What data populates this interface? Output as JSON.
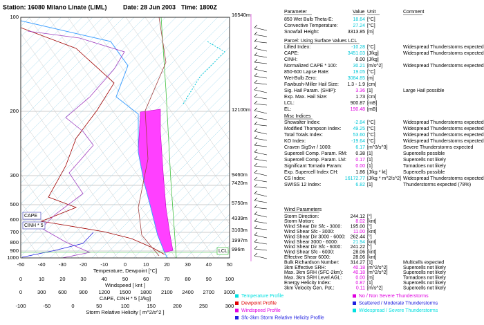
{
  "header": {
    "station": "Station: 16080 Milano Linate (LIML)",
    "date": "Date: 28 Jun 2003",
    "time": "Time: 1800Z"
  },
  "pressure_labels": [
    "100",
    "200",
    "300",
    "500",
    "600",
    "700",
    "800",
    "900",
    "1000"
  ],
  "height_labels": [
    "16540m",
    "12100m",
    "9460m",
    "7420m",
    "5750m",
    "4339m",
    "3103m",
    "1997m",
    "996m"
  ],
  "boxes": {
    "cape": "CAPE",
    "cinh": "CINH * 5",
    "lcl": "LCL"
  },
  "axes": [
    {
      "ticks": [
        "-50",
        "-40",
        "-30",
        "-20",
        "-10",
        "0",
        "10",
        "20",
        "30",
        "40",
        "50"
      ],
      "label": "Temperature, Dewpoint [°C]"
    },
    {
      "ticks": [
        "0",
        "10",
        "20",
        "30",
        "40",
        "50",
        "60",
        "70",
        "80",
        "90",
        "100"
      ],
      "label": "Windspeed [ knt ]"
    },
    {
      "ticks": [
        "0",
        "300",
        "600",
        "900",
        "1200",
        "1500",
        "1800",
        "2100",
        "2400",
        "2700",
        "3000"
      ],
      "label": "CAPE, CINH * 5 [J/kg]"
    },
    {
      "ticks": [
        "-100",
        "-50",
        "0",
        "50",
        "100",
        "150",
        "200",
        "250",
        "300"
      ],
      "label": "Storm Relative Helicity [ m^2/s^2 ]"
    }
  ],
  "table": {
    "header": [
      "Parameter",
      "Value",
      "Unit",
      "Comment"
    ],
    "sections": [
      {
        "rows": [
          {
            "label": "850 Wet Bulb Theta-E:",
            "value": "18.64",
            "unit": "[°C]",
            "color": "#00c8d8"
          },
          {
            "label": "Convective Temperature:",
            "value": "27.24",
            "unit": "[°C]",
            "color": "#00c8d8"
          },
          {
            "label": "Snowfall Height:",
            "value": "3313.85",
            "unit": "[m]"
          }
        ]
      },
      {
        "title": "Parcel: Using Surface Values LCL",
        "rows": [
          {
            "label": "Lifted Index:",
            "value": "-10.28",
            "unit": "[°C]",
            "comment": "Widespread Thunderstorms expected",
            "color": "#00c8d8"
          },
          {
            "label": "CAPE:",
            "value": "3451.03",
            "unit": "[J/kg]",
            "comment": "Widespread Thunderstorms expected",
            "color": "#00c8d8"
          },
          {
            "label": "CINH:",
            "value": "0.00",
            "unit": "[J/kg]"
          },
          {
            "label": "Normalized CAPE * 100:",
            "value": "30.21",
            "unit": "[m/s^2]",
            "comment": "Widespread Thunderstorms expected",
            "color": "#00c8d8"
          },
          {
            "label": "850-600 Lapse Rate:",
            "value": "19.05",
            "unit": "[°C]",
            "color": "#00c8d8"
          },
          {
            "label": "Wet-Bulb Zero:",
            "value": "3084.85",
            "unit": "[m]",
            "color": "#00c8d8"
          },
          {
            "label": "Fawbush-Miller Hail Size:",
            "value": "1.3 - 1.9",
            "unit": "[cm]"
          },
          {
            "label": "Sig. Hail Param. (SHIP):",
            "value": "3.36",
            "unit": "[1]",
            "comment": "Large Hail possible",
            "color": "#e000e0"
          },
          {
            "label": "Exp. Max. Hail Size:",
            "value": "1.73",
            "unit": "[cm]"
          },
          {
            "label": "LCL:",
            "value": "900.87",
            "unit": "[mB]"
          },
          {
            "label": "EL:",
            "value": "190.48",
            "unit": "[mB]",
            "color": "#e000e0"
          }
        ]
      },
      {
        "title": "Misc Indices",
        "rows": [
          {
            "label": "Showalter Index:",
            "value": "-2.84",
            "unit": "[°C]",
            "comment": "Widespread Thunderstorms expected",
            "color": "#00c8d8"
          },
          {
            "label": "Modified Thompson Index:",
            "value": "49.25",
            "unit": "[°C]",
            "comment": "Widespread Thunderstorms expected",
            "color": "#00c8d8"
          },
          {
            "label": "Total Totals Index:",
            "value": "53.60",
            "unit": "[°C]",
            "comment": "Widespread Thunderstorms expected",
            "color": "#00c8d8"
          },
          {
            "label": "KO Index:",
            "value": "-19.64",
            "unit": "[°C]",
            "comment": "Widespread Thunderstorms expected",
            "color": "#00c8d8"
          },
          {
            "label": "Craven SigSvr / 1000:",
            "value": "6.17",
            "unit": "[m^3/s^3]",
            "comment": "Severe Thunderstorms expected",
            "color": "#00c8d8"
          },
          {
            "label": "Supercell Comp. Param. RM:",
            "value": "0.38",
            "unit": "[1]",
            "comment": "Supercells possible"
          },
          {
            "label": "Supercell Comp. Param. LM:",
            "value": "0.17",
            "unit": "[1]",
            "comment": "Supercells not likely",
            "color": "#e000e0"
          },
          {
            "label": "Significant Tornado Param:",
            "value": "0.00",
            "unit": "[1]",
            "comment": "Tornadoes not likely",
            "color": "#e000e0"
          },
          {
            "label": "Exp. Supercell Index CH:",
            "value": "1.86",
            "unit": "[J/kg * kt]",
            "comment": "Supercells possible"
          },
          {
            "label": "CS Index:",
            "value": "16172.77",
            "unit": "[J/kg * m^2/s^2]",
            "comment": "Widespread Thunderstorms expected",
            "color": "#00c8d8"
          },
          {
            "label": "SWISS 12 Index:",
            "value": "6.82",
            "unit": "[1]",
            "comment": "Thunderstorms expected (78%)",
            "color": "#00c8d8"
          }
        ]
      },
      {
        "title": "Wind Parameters",
        "rows": [
          {
            "label": "Storm Direction:",
            "value": "244.12",
            "unit": "[°]"
          },
          {
            "label": "Storm Motion:",
            "value": "8.02",
            "unit": "[knt]",
            "color": "#e000e0"
          },
          {
            "label": "Wind Shear Dir Sfc - 3000:",
            "value": "195.00",
            "unit": "[°]"
          },
          {
            "label": "Wind Shear Sfc - 3000:",
            "value": "11.00",
            "unit": "[knt]",
            "color": "#e000e0"
          },
          {
            "label": "Wind Shear Dir 3000 - 6000:",
            "value": "262.44",
            "unit": "[°]"
          },
          {
            "label": "Wind Shear 3000 - 6000:",
            "value": "21.94",
            "unit": "[knt]",
            "color": "#00c8d8"
          },
          {
            "label": "Wind Shear Dir Sfc - 6000:",
            "value": "241.22",
            "unit": "[°]"
          },
          {
            "label": "Wind Shear Sfc - 6000:",
            "value": "28.06",
            "unit": "[knt]"
          },
          {
            "label": "Effective Shear 6000:",
            "value": "28.06",
            "unit": "[knt]"
          },
          {
            "label": "Bulk Richardson Number:",
            "value": "314.27",
            "unit": "[1]",
            "comment": "Multicells expected"
          },
          {
            "label": "3km Effective SRH:",
            "value": "40.18",
            "unit": "[m^2/s^2]",
            "comment": "Supercells not likely",
            "color": "#e000e0"
          },
          {
            "label": "Max. 3km SRH (SFC-2km):",
            "value": "40.18",
            "unit": "[m^2/s^2]",
            "comment": "Supercells not likely",
            "color": "#e000e0"
          },
          {
            "label": "Max. 3km SRH Level AGL:",
            "value": "0.00",
            "unit": "[m]",
            "comment": "Tornadoes not likely",
            "color": "#e000e0"
          },
          {
            "label": "Energy Helicity Index:",
            "value": "0.87",
            "unit": "[1]",
            "comment": "Supercells not likely",
            "color": "#e000e0"
          },
          {
            "label": "3km Velocity Gen. Pot.:",
            "value": "0.11",
            "unit": "[m/s^2]",
            "comment": "Supercells not likely",
            "color": "#e000e0"
          }
        ]
      }
    ]
  },
  "legend": [
    {
      "label": "Temperature Profile",
      "color": "#00e0e0"
    },
    {
      "label": "Dewpoint Profile",
      "color": "#e00000"
    },
    {
      "label": "Windspeed Profile",
      "color": "#e000e0"
    },
    {
      "label": "Sfc-3km Storm Relative Helicity Profile",
      "color": "#2020e0"
    },
    {
      "label": "No / Non Severe Thunderstorms",
      "color": "#e000e0"
    },
    {
      "label": "Scattered / Moderate Thunderstorms",
      "color": "#2020e0"
    },
    {
      "label": "Widespread / Severe Thunderstorms",
      "color": "#00e0e0"
    }
  ]
}
